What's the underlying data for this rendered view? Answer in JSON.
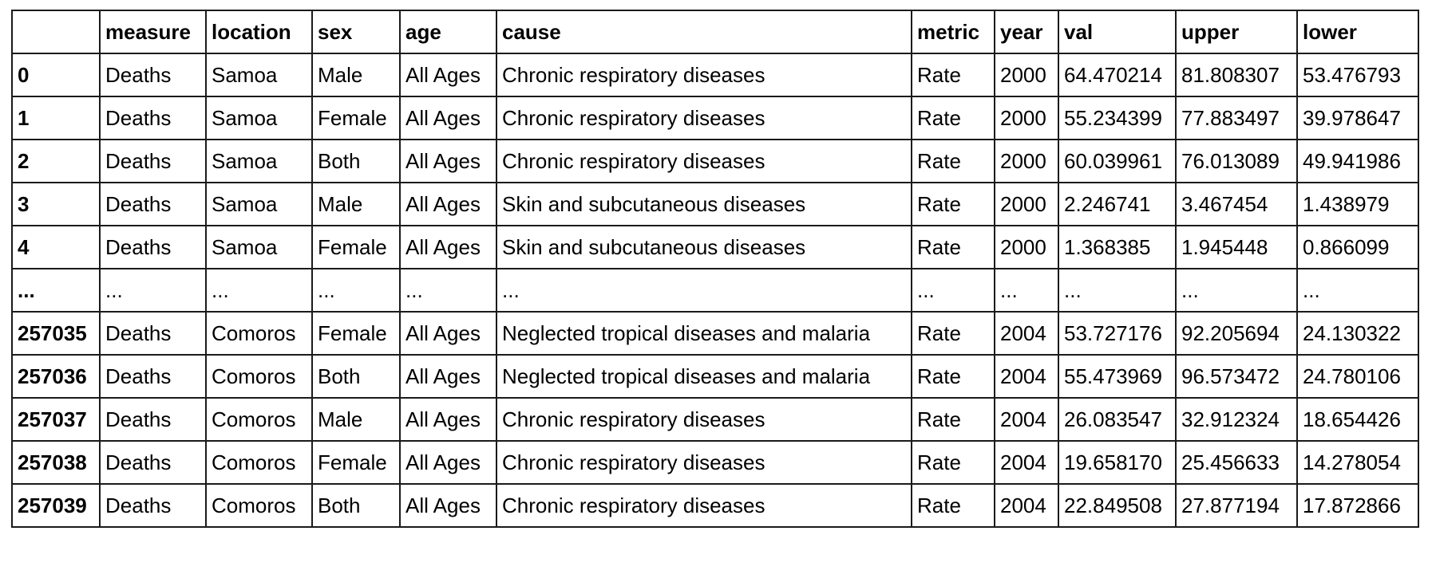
{
  "table": {
    "index_header": "",
    "columns": [
      "measure",
      "location",
      "sex",
      "age",
      "cause",
      "metric",
      "year",
      "val",
      "upper",
      "lower"
    ],
    "rows": [
      {
        "index": "0",
        "cells": [
          "Deaths",
          "Samoa",
          "Male",
          "All Ages",
          "Chronic respiratory diseases",
          "Rate",
          "2000",
          "64.470214",
          "81.808307",
          "53.476793"
        ]
      },
      {
        "index": "1",
        "cells": [
          "Deaths",
          "Samoa",
          "Female",
          "All Ages",
          "Chronic respiratory diseases",
          "Rate",
          "2000",
          "55.234399",
          "77.883497",
          "39.978647"
        ]
      },
      {
        "index": "2",
        "cells": [
          "Deaths",
          "Samoa",
          "Both",
          "All Ages",
          "Chronic respiratory diseases",
          "Rate",
          "2000",
          "60.039961",
          "76.013089",
          "49.941986"
        ]
      },
      {
        "index": "3",
        "cells": [
          "Deaths",
          "Samoa",
          "Male",
          "All Ages",
          "Skin and subcutaneous diseases",
          "Rate",
          "2000",
          "2.246741",
          "3.467454",
          "1.438979"
        ]
      },
      {
        "index": "4",
        "cells": [
          "Deaths",
          "Samoa",
          "Female",
          "All Ages",
          "Skin and subcutaneous diseases",
          "Rate",
          "2000",
          "1.368385",
          "1.945448",
          "0.866099"
        ]
      },
      {
        "index": "...",
        "cells": [
          "...",
          "...",
          "...",
          "...",
          "...",
          "...",
          "...",
          "...",
          "...",
          "..."
        ]
      },
      {
        "index": "257035",
        "cells": [
          "Deaths",
          "Comoros",
          "Female",
          "All Ages",
          "Neglected tropical diseases and malaria",
          "Rate",
          "2004",
          "53.727176",
          "92.205694",
          "24.130322"
        ]
      },
      {
        "index": "257036",
        "cells": [
          "Deaths",
          "Comoros",
          "Both",
          "All Ages",
          "Neglected tropical diseases and malaria",
          "Rate",
          "2004",
          "55.473969",
          "96.573472",
          "24.780106"
        ]
      },
      {
        "index": "257037",
        "cells": [
          "Deaths",
          "Comoros",
          "Male",
          "All Ages",
          "Chronic respiratory diseases",
          "Rate",
          "2004",
          "26.083547",
          "32.912324",
          "18.654426"
        ]
      },
      {
        "index": "257038",
        "cells": [
          "Deaths",
          "Comoros",
          "Female",
          "All Ages",
          "Chronic respiratory diseases",
          "Rate",
          "2004",
          "19.658170",
          "25.456633",
          "14.278054"
        ]
      },
      {
        "index": "257039",
        "cells": [
          "Deaths",
          "Comoros",
          "Both",
          "All Ages",
          "Chronic respiratory diseases",
          "Rate",
          "2004",
          "22.849508",
          "27.877194",
          "17.872866"
        ]
      }
    ]
  }
}
